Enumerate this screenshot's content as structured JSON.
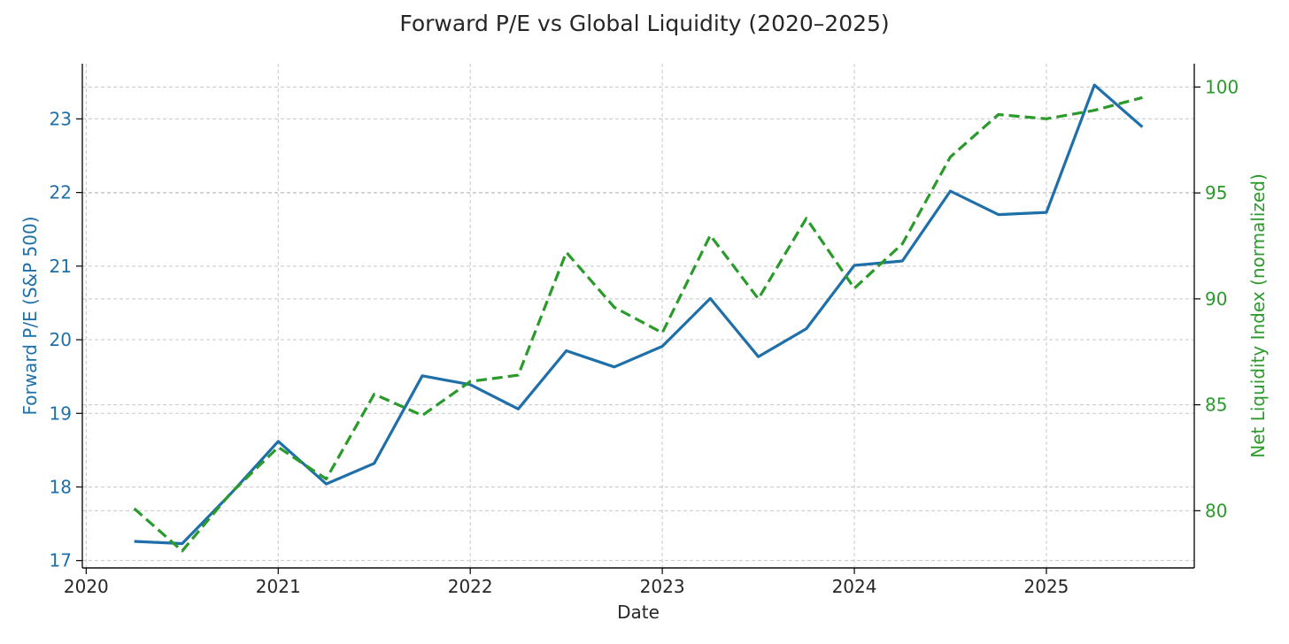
{
  "chart_data": {
    "type": "line",
    "title": "Forward P/E vs Global Liquidity (2020–2025)",
    "xlabel": "Date",
    "ylabel_left": "Forward P/E (S&P 500)",
    "ylabel_right": "Net Liquidity Index (normalized)",
    "x_ticks": [
      "2020",
      "2021",
      "2022",
      "2023",
      "2024",
      "2025"
    ],
    "x": [
      2020.25,
      2020.5,
      2020.75,
      2021.0,
      2021.25,
      2021.5,
      2021.75,
      2022.0,
      2022.25,
      2022.5,
      2022.75,
      2023.0,
      2023.25,
      2023.5,
      2023.75,
      2024.0,
      2024.25,
      2024.5,
      2024.75,
      2025.0,
      2025.25,
      2025.5
    ],
    "xlim": [
      2019.98,
      2025.77
    ],
    "left_axis": {
      "ylim": [
        16.9,
        23.75
      ],
      "ticks": [
        "17",
        "18",
        "19",
        "20",
        "21",
        "22",
        "23"
      ]
    },
    "right_axis": {
      "ylim": [
        77.3,
        101.1
      ],
      "ticks": [
        "80",
        "85",
        "90",
        "95",
        "100"
      ]
    },
    "grid": true,
    "series": [
      {
        "name": "Forward P/E (S&P 500)",
        "axis": "left",
        "style": "solid",
        "color": "#1f6fa8",
        "values": [
          17.26,
          17.23,
          17.9,
          18.62,
          18.04,
          18.32,
          19.51,
          19.39,
          19.06,
          19.85,
          19.63,
          19.91,
          20.56,
          19.77,
          20.15,
          21.01,
          21.07,
          22.02,
          21.7,
          21.73,
          23.46,
          22.89
        ]
      },
      {
        "name": "Net Liquidity Index (normalized)",
        "axis": "right",
        "style": "dashed",
        "color": "#2a9a2a",
        "values": [
          80.1,
          78.1,
          80.8,
          83.0,
          81.5,
          85.5,
          84.5,
          86.1,
          86.4,
          92.2,
          89.6,
          88.4,
          93.0,
          90.0,
          93.8,
          90.5,
          92.6,
          96.7,
          98.7,
          98.5,
          98.9,
          99.5
        ]
      }
    ]
  }
}
